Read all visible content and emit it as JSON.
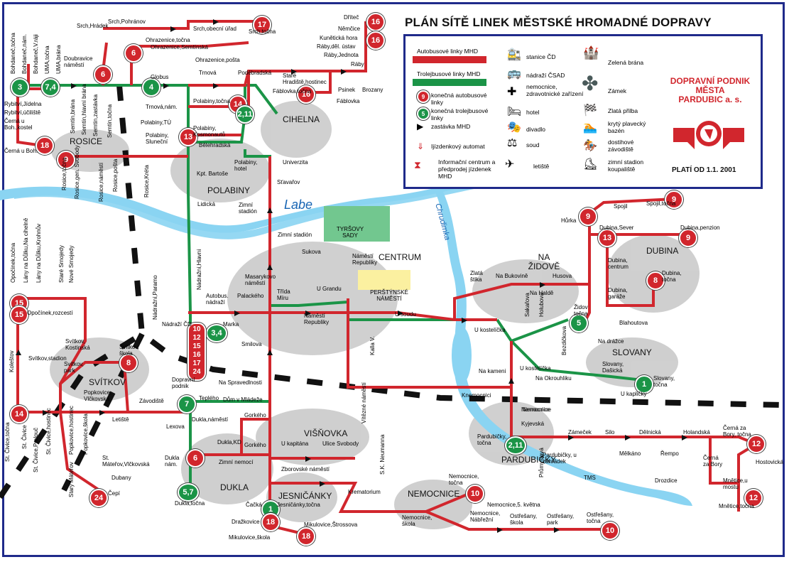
{
  "title": "PLÁN SÍTĚ LINEK MĚSTSKÉ HROMADNÉ DOPRAVY",
  "legend": {
    "bus_lines": "Autobusové linky MHD",
    "trolley_lines": "Trolejbusové linky MHD",
    "bus_terminal": "konečná autobusové linky",
    "trolley_terminal": "konečná trolejbusové linky",
    "stop": "zastávka MHD",
    "ticket_machine": "Ijízdenkový automat",
    "info_center": "Informační centrum a předprodej jízdenek MHD",
    "station_cd": "stanice ČD",
    "bus_station": "nádraží ČSAD",
    "hospital": "nemocnice, zdravotnické zařízení",
    "hotel": "hotel",
    "theatre": "divadlo",
    "court": "soud",
    "airport": "letiště",
    "green_gate": "Zelená brána",
    "castle": "Zámek",
    "golden_helmet": "Zlatá přilba",
    "pool": "krytý plavecký bazén",
    "racecourse": "dostihové závodiště",
    "winter_stadium": "zimní stadion koupaliště",
    "colors": {
      "bus": "#d1262d",
      "trolley": "#1b9447",
      "river": "#8ad4f2",
      "frame": "#1f2a8a"
    }
  },
  "company": {
    "line1": "DOPRAVNÍ PODNIK",
    "line2": "MĚSTA",
    "line3": "PARDUBIC a. s."
  },
  "valid_from": "PLATÍ OD 1.1. 2001",
  "river_labe": "Labe",
  "river_chrudimka": "Chrudimka",
  "districts": [
    {
      "name": "ROSICE"
    },
    {
      "name": "CIHELNA"
    },
    {
      "name": "POLABINY"
    },
    {
      "name": "CENTRUM"
    },
    {
      "name": "NA ŽIDOVĚ"
    },
    {
      "name": "DUBINA"
    },
    {
      "name": "SLOVANY"
    },
    {
      "name": "SVÍTKOV"
    },
    {
      "name": "VIŠŇOVKA"
    },
    {
      "name": "PARDUBIČKY"
    },
    {
      "name": "NEMOCNICE"
    },
    {
      "name": "DUKLA"
    },
    {
      "name": "JESNIČÁNKY"
    },
    {
      "name": "TYRŠOVY SADY"
    },
    {
      "name": "PERŠTÝNSKÉ NÁMĚSTÍ"
    }
  ],
  "terminals": [
    {
      "n": "3",
      "t": "trol"
    },
    {
      "n": "7,4",
      "t": "trol"
    },
    {
      "n": "4",
      "t": "trol"
    },
    {
      "n": "6",
      "t": "bus"
    },
    {
      "n": "6",
      "t": "bus"
    },
    {
      "n": "17",
      "t": "bus"
    },
    {
      "n": "16",
      "t": "bus"
    },
    {
      "n": "16",
      "t": "bus"
    },
    {
      "n": "16",
      "t": "bus"
    },
    {
      "n": "14",
      "t": "bus"
    },
    {
      "n": "2,11",
      "t": "trol"
    },
    {
      "n": "13",
      "t": "bus"
    },
    {
      "n": "18",
      "t": "bus"
    },
    {
      "n": "9",
      "t": "bus"
    },
    {
      "n": "9",
      "t": "bus"
    },
    {
      "n": "9",
      "t": "bus"
    },
    {
      "n": "9",
      "t": "bus"
    },
    {
      "n": "13",
      "t": "bus"
    },
    {
      "n": "8",
      "t": "bus"
    },
    {
      "n": "5",
      "t": "trol"
    },
    {
      "n": "1",
      "t": "trol"
    },
    {
      "n": "15",
      "t": "bus"
    },
    {
      "n": "15",
      "t": "bus"
    },
    {
      "n": "8",
      "t": "bus"
    },
    {
      "n": "14",
      "t": "bus"
    },
    {
      "n": "24",
      "t": "bus"
    },
    {
      "n": "3,4",
      "t": "trol"
    },
    {
      "n": "7",
      "t": "trol"
    },
    {
      "n": "6",
      "t": "bus"
    },
    {
      "n": "5,7",
      "t": "trol"
    },
    {
      "n": "1",
      "t": "trol"
    },
    {
      "n": "18",
      "t": "bus"
    },
    {
      "n": "18",
      "t": "bus"
    },
    {
      "n": "2,11",
      "t": "trol"
    },
    {
      "n": "10",
      "t": "bus"
    },
    {
      "n": "10",
      "t": "bus"
    },
    {
      "n": "12",
      "t": "bus"
    },
    {
      "n": "12",
      "t": "bus"
    }
  ],
  "terminal_stack": [
    "10",
    "12",
    "15",
    "16",
    "17",
    "24"
  ],
  "stops": [
    "Srch,Hrádek",
    "Srch,Pohránov",
    "Srch,obecní úřad",
    "Srch,točna",
    "Ohrazenice,točna",
    "Ohrazenice,Semtínská",
    "Ohrazenice,pošta",
    "Doubravice náměstí",
    "Bohdaneč,točna",
    "Bohdaneč,nám.",
    "Bohdaneč,V.ráji",
    "UMA,točna",
    "UMA,brána",
    "Globus",
    "Trnová",
    "Trnová,nám.",
    "Poděbradská",
    "Staré Hradiště,hostinec",
    "Fáblovka,točna",
    "Dříteč",
    "Němčice",
    "Kunětická hora",
    "Ráby,děl. ústav",
    "Ráby,Jednota",
    "Ráby",
    "Psinek",
    "Brozany",
    "Fáblovka",
    "Polabiny,točna",
    "Polabiny,TÚ",
    "Polabiny, Kosmonautů",
    "Polabiny, Sluneční",
    "Bělehradská",
    "Polabiny, hotel",
    "Kpt. Bartoše",
    "Lidická",
    "Univerzita",
    "Sťavařov",
    "Zimní stadión",
    "Rybitví,Jídelna",
    "Rybitví,účiliště",
    "Černá u Boh.,kostel",
    "Černá u Boh.",
    "Semtín,zastávka",
    "Semtín,brána",
    "Semtín,hlavní brána",
    "Semtín,točna",
    "Rosice,točna",
    "Rosice,gen. Svobody",
    "Rosice,náměstí",
    "Rosice,pošta",
    "Rosice,Kréta",
    "Zimní stadión",
    "Sukova",
    "Náměstí Republiky",
    "Masarykovo náměstí",
    "Palackého",
    "Třída Míru",
    "U Grandu",
    "Náměstí Republiky",
    "U soudu",
    "Autobus. nádraží",
    "Nádraží ČD",
    "Nádražní,Hlavní",
    "Nádražní,Paramo",
    "Marka",
    "Smilova",
    "Zlatá štika",
    "Na Bukovině",
    "Na Haldě",
    "Husova",
    "Sakařova",
    "Holubova",
    "Židov točna",
    "Dubina,Sever",
    "Dubina,penzion",
    "Dubina, centrum",
    "Dubina, garáže",
    "Dubina, točna",
    "Blahoutova",
    "Spojil",
    "Spojil,točna",
    "Hůrka",
    "U kostelíčka",
    "U kostelíčka",
    "Na Okrouhliku",
    "Na drážce",
    "Slovany, Dašická",
    "Slovany, točna",
    "U kapličky",
    "Bezdičkova",
    "Na kameni",
    "Opočínek,točna",
    "Lány na Důlku,Na cihelně",
    "Lány na Důlku,Krohnův",
    "Staré Srnojedy",
    "Nové Srnojedy",
    "Opočínek,rozcestí",
    "Svítkov,stadion",
    "Svítkov, Kostinská",
    "Svítkov, škola",
    "Svítkov, park",
    "Popkovice, Vlčkovská",
    "Koleštov",
    "Letiště",
    "Závodiště",
    "St. Čivice,točna",
    "St. Čivice",
    "St. Čivice,Prelouč",
    "St. Čivice,hostinec",
    "Popkovice,hostinec",
    "Popkovice,škola",
    "St. Máteřov,Vlčkovská",
    "Starý Máteřov",
    "Dubany",
    "Čepí",
    "Dopravní podnik",
    "Teplého",
    "Na Spravedlnosti",
    "Dům v Mládeže",
    "Lexova",
    "Dukla,náměstí",
    "Dukla,KD",
    "Gorkého",
    "Gorkého",
    "Zimní nemocí",
    "Dukla,točna",
    "Dukla nám.",
    "U kapitána",
    "Ulice Svobody",
    "Zborovské náměstí",
    "Krematorium",
    "Vítězné náměstí",
    "S.K. Neumanna",
    "Nemocnice, točna",
    "Nemocnice",
    "Nemocnice, Nábřežní",
    "Nemocnice,5. května",
    "Nemocnice, škola",
    "Ostřešany, škola",
    "Ostřešany, park",
    "Ostřešany, točna",
    "Čačká",
    "Jesničánky,točna",
    "Dražkovice",
    "Mikulovice,škola",
    "Mikulovice,Štrossova",
    "Pardubičky, točna",
    "Pardubičky, u zahrádek",
    "Kyjevská",
    "Zámeček",
    "Silo",
    "Dělnická",
    "Holandská",
    "Černá za Bory, točna",
    "Průmyslová",
    "TMS",
    "Mělkáno",
    "Řempo",
    "Drozdice",
    "Hostovická",
    "Mnětice,u mostu",
    "Mnětice,točna",
    "Knemocnici",
    "Nemocnice",
    "Černá za Bory",
    "Kalla V."
  ]
}
